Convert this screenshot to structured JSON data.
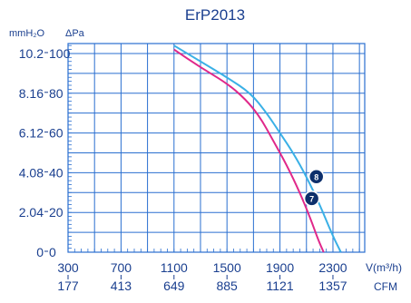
{
  "chart_data": {
    "type": "line",
    "title": "ErP2013",
    "left_axis_units": [
      "mmH₂O",
      "ΔPa"
    ],
    "y_ticks_pa": [
      "0",
      "20",
      "40",
      "60",
      "80",
      "100"
    ],
    "y_ticks_mmh2o": [
      "0",
      "2.04",
      "4.08",
      "6.12",
      "8.16",
      "10.2"
    ],
    "x_ticks_m3h": [
      "300",
      "700",
      "1100",
      "1500",
      "1900",
      "2300"
    ],
    "x_ticks_cfm": [
      "177",
      "413",
      "649",
      "885",
      "1121",
      "1357"
    ],
    "x_unit_top": "V(m³/h)",
    "x_unit_bottom": "CFM",
    "xlim": [
      300,
      2540
    ],
    "ylim": [
      0,
      105
    ],
    "grid": true,
    "series": [
      {
        "name": "8",
        "color": "#3ab0e6",
        "x": [
          1100,
          1300,
          1500,
          1680,
          1800,
          1900,
          2000,
          2100,
          2200,
          2300,
          2360
        ],
        "y": [
          104,
          96,
          88,
          80,
          70,
          60,
          50,
          38,
          24,
          8,
          0
        ],
        "marker_at": [
          2175,
          38
        ]
      },
      {
        "name": "7",
        "color": "#e0288a",
        "x": [
          1100,
          1300,
          1500,
          1640,
          1750,
          1850,
          1950,
          2050,
          2130,
          2190,
          2230
        ],
        "y": [
          102,
          93,
          85,
          77,
          68,
          56,
          44,
          30,
          17,
          6,
          0
        ],
        "marker_at": [
          2140,
          27
        ]
      }
    ],
    "marker_color": "#0d2f6b"
  }
}
